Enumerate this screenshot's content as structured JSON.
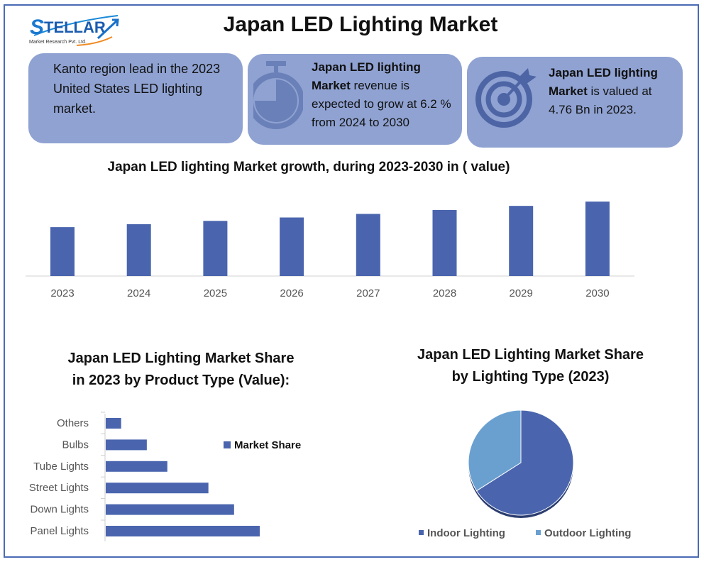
{
  "logo": {
    "name": "STELLAR",
    "tagline": "Market Research Pvt. Ltd."
  },
  "title": "Japan LED Lighting Market",
  "cards": [
    {
      "text": "Kanto region lead in the 2023 United States LED lighting market."
    },
    {
      "bold": "Japan LED lighting Market",
      "text": " revenue is expected to grow at 6.2 % from 2024 to 2030",
      "icon": "stopwatch-icon"
    },
    {
      "bold": "Japan LED lighting Market",
      "text": " is valued at 4.76 Bn in 2023.",
      "icon": "target-icon"
    }
  ],
  "colors": {
    "bar": "#4a65ae",
    "card": "#8fa2d2",
    "indoor": "#4a65ae",
    "outdoor": "#6aa0d0",
    "border": "#4a6bb5"
  },
  "chart_data": [
    {
      "type": "bar",
      "title": "Japan LED lighting Market growth, during 2023-2030 in ( value)",
      "categories": [
        "2023",
        "2024",
        "2025",
        "2026",
        "2027",
        "2028",
        "2029",
        "2030"
      ],
      "values": [
        4.76,
        5.05,
        5.37,
        5.7,
        6.05,
        6.43,
        6.83,
        7.25
      ],
      "ylim": [
        0,
        7.6
      ],
      "grid": false
    },
    {
      "type": "bar",
      "orientation": "horizontal",
      "title_lines": [
        "Japan LED Lighting Market Share",
        "in 2023 by Product Type (Value):"
      ],
      "categories": [
        "Others",
        "Bulbs",
        "Tube Lights",
        "Street Lights",
        "Down Lights",
        "Panel Lights"
      ],
      "series": [
        {
          "name": "Market Share",
          "values": [
            3,
            8,
            12,
            20,
            25,
            30
          ]
        }
      ],
      "legend": "right",
      "grid": false
    },
    {
      "type": "pie",
      "title_lines": [
        "Japan LED Lighting Market Share",
        "by Lighting Type (2023)"
      ],
      "labels": [
        "Indoor Lighting",
        "Outdoor Lighting"
      ],
      "values": [
        66,
        34
      ],
      "legend": "bottom"
    }
  ]
}
